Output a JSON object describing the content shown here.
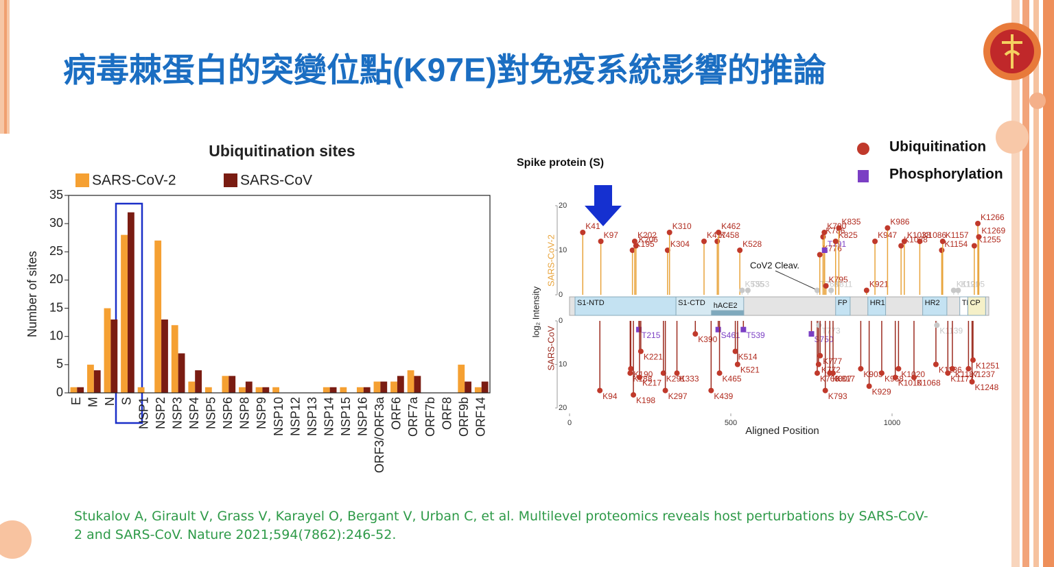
{
  "title": "病毒棘蛋白的突變位點(K97E)對免疫系統影響的推論",
  "chart_data": [
    {
      "type": "bar",
      "title": "Ubiquitination sites",
      "ylabel": "Number of sites",
      "categories": [
        "E",
        "M",
        "N",
        "S",
        "NSP1",
        "NSP2",
        "NSP3",
        "NSP4",
        "NSP5",
        "NSP6",
        "NSP8",
        "NSP9",
        "NSP10",
        "NSP12",
        "NSP13",
        "NSP14",
        "NSP15",
        "NSP16",
        "ORF3/ORF3a",
        "ORF6",
        "ORF7a",
        "ORF7b",
        "ORF8",
        "ORF9b",
        "ORF14"
      ],
      "series": [
        {
          "name": "SARS-CoV-2",
          "color": "#f5a032",
          "values": [
            1,
            5,
            15,
            28,
            1,
            27,
            12,
            2,
            1,
            3,
            1,
            1,
            1,
            0,
            0,
            1,
            1,
            1,
            2,
            2,
            4,
            0,
            0,
            5,
            1
          ]
        },
        {
          "name": "SARS-CoV",
          "color": "#7a1c12",
          "values": [
            1,
            4,
            13,
            32,
            0,
            13,
            7,
            4,
            0,
            3,
            2,
            1,
            0,
            0,
            0,
            1,
            0,
            1,
            2,
            3,
            3,
            0,
            0,
            2,
            2
          ]
        }
      ],
      "ylim": [
        0,
        35
      ],
      "yticks": [
        0,
        5,
        10,
        15,
        20,
        25,
        30,
        35
      ]
    },
    {
      "type": "lollipop",
      "title": "Spike protein (S)",
      "xlabel": "Aligned Position",
      "ylabel": "log₂ Intensity",
      "annotation": "CoV2 Cleav.",
      "xlim": [
        0,
        1300
      ],
      "xticks": [
        0,
        500,
        1000
      ],
      "ylim": [
        0,
        20
      ],
      "yticks": [
        0,
        10,
        20
      ],
      "legend": [
        {
          "name": "Ubiquitination",
          "color": "#c0392b"
        },
        {
          "name": "Phosphorylation",
          "color": "#7b3fc4"
        }
      ],
      "domains": [
        {
          "label": "S1-NTD",
          "start": 17,
          "end": 330,
          "color": "#c4e2f2"
        },
        {
          "label": "S1-CTD",
          "start": 330,
          "end": 540,
          "color": "#d6e9f2"
        },
        {
          "label": "hACE2",
          "start": 440,
          "end": 540,
          "color": "#7fa9bd"
        },
        {
          "label": "FP",
          "start": 825,
          "end": 870,
          "color": "#c4e2f2"
        },
        {
          "label": "HR1",
          "start": 925,
          "end": 980,
          "color": "#c4e2f2"
        },
        {
          "label": "HR2",
          "start": 1095,
          "end": 1170,
          "color": "#c4e2f2"
        },
        {
          "label": "TM",
          "start": 1210,
          "end": 1235,
          "color": "#ffffff"
        },
        {
          "label": "CP",
          "start": 1235,
          "end": 1290,
          "color": "#f5f0c8"
        }
      ],
      "panels": [
        {
          "name": "SARS-CoV-2",
          "color": "#e8a33a",
          "sites": [
            {
              "label": "K41",
              "x": 41,
              "value": 14,
              "color": "#c0392b"
            },
            {
              "label": "K97",
              "x": 97,
              "value": 12,
              "color": "#c0392b"
            },
            {
              "label": "K195",
              "x": 195,
              "value": 10,
              "color": "#c0392b"
            },
            {
              "label": "K202",
              "x": 202,
              "value": 12,
              "color": "#c0392b"
            },
            {
              "label": "K206",
              "x": 206,
              "value": 11,
              "color": "#c0392b"
            },
            {
              "label": "K304",
              "x": 304,
              "value": 10,
              "color": "#c0392b"
            },
            {
              "label": "K310",
              "x": 310,
              "value": 14,
              "color": "#c0392b"
            },
            {
              "label": "K417",
              "x": 417,
              "value": 12,
              "color": "#c0392b"
            },
            {
              "label": "K458",
              "x": 458,
              "value": 12,
              "color": "#c0392b"
            },
            {
              "label": "K462",
              "x": 462,
              "value": 14,
              "color": "#c0392b"
            },
            {
              "label": "K528",
              "x": 528,
              "value": 10,
              "color": "#c0392b"
            },
            {
              "label": "K535",
              "x": 535,
              "value": 1,
              "color": "#c8c8c8"
            },
            {
              "label": "T553",
              "x": 553,
              "value": 1,
              "color": "#c8c8c8"
            },
            {
              "label": "T768",
              "x": 768,
              "value": 1,
              "color": "#c8c8c8"
            },
            {
              "label": "K776",
              "x": 776,
              "value": 9,
              "color": "#c0392b"
            },
            {
              "label": "K786",
              "x": 786,
              "value": 13,
              "color": "#c0392b"
            },
            {
              "label": "K790",
              "x": 790,
              "value": 14,
              "color": "#c0392b"
            },
            {
              "label": "T791",
              "x": 791,
              "value": 10,
              "color": "#7b3fc4"
            },
            {
              "label": "K795",
              "x": 795,
              "value": 2,
              "color": "#c0392b"
            },
            {
              "label": "K811",
              "x": 811,
              "value": 1,
              "color": "#c8c8c8"
            },
            {
              "label": "K825",
              "x": 825,
              "value": 12,
              "color": "#c0392b"
            },
            {
              "label": "K835",
              "x": 835,
              "value": 15,
              "color": "#c0392b"
            },
            {
              "label": "K921",
              "x": 921,
              "value": 1,
              "color": "#c0392b"
            },
            {
              "label": "K947",
              "x": 947,
              "value": 12,
              "color": "#c0392b"
            },
            {
              "label": "K986",
              "x": 986,
              "value": 15,
              "color": "#c0392b"
            },
            {
              "label": "K1028",
              "x": 1028,
              "value": 11,
              "color": "#c0392b"
            },
            {
              "label": "K1038",
              "x": 1038,
              "value": 12,
              "color": "#c0392b"
            },
            {
              "label": "K1086",
              "x": 1086,
              "value": 12,
              "color": "#c0392b"
            },
            {
              "label": "K1154",
              "x": 1154,
              "value": 10,
              "color": "#c0392b"
            },
            {
              "label": "K1157",
              "x": 1157,
              "value": 12,
              "color": "#c0392b"
            },
            {
              "label": "K1191",
              "x": 1191,
              "value": 1,
              "color": "#c8c8c8"
            },
            {
              "label": "K1205",
              "x": 1205,
              "value": 1,
              "color": "#c8c8c8"
            },
            {
              "label": "K1255",
              "x": 1255,
              "value": 11,
              "color": "#c0392b"
            },
            {
              "label": "K1266",
              "x": 1266,
              "value": 16,
              "color": "#c0392b"
            },
            {
              "label": "K1269",
              "x": 1269,
              "value": 13,
              "color": "#c0392b"
            }
          ]
        },
        {
          "name": "SARS-CoV",
          "color": "#9b2a1e",
          "sites": [
            {
              "label": "K94",
              "x": 94,
              "value": 16,
              "color": "#c0392b"
            },
            {
              "label": "K188",
              "x": 188,
              "value": 12,
              "color": "#c0392b"
            },
            {
              "label": "K190",
              "x": 190,
              "value": 11,
              "color": "#c0392b"
            },
            {
              "label": "K198",
              "x": 198,
              "value": 17,
              "color": "#c0392b"
            },
            {
              "label": "T215",
              "x": 215,
              "value": 2,
              "color": "#7b3fc4"
            },
            {
              "label": "K217",
              "x": 217,
              "value": 13,
              "color": "#c0392b"
            },
            {
              "label": "K221",
              "x": 221,
              "value": 7,
              "color": "#c0392b"
            },
            {
              "label": "K291",
              "x": 291,
              "value": 12,
              "color": "#c0392b"
            },
            {
              "label": "K297",
              "x": 297,
              "value": 16,
              "color": "#c0392b"
            },
            {
              "label": "K333",
              "x": 333,
              "value": 12,
              "color": "#c0392b"
            },
            {
              "label": "K390",
              "x": 390,
              "value": 3,
              "color": "#c0392b"
            },
            {
              "label": "K439",
              "x": 439,
              "value": 16,
              "color": "#c0392b"
            },
            {
              "label": "S461",
              "x": 461,
              "value": 2,
              "color": "#7b3fc4"
            },
            {
              "label": "K465",
              "x": 465,
              "value": 12,
              "color": "#c0392b"
            },
            {
              "label": "K514",
              "x": 514,
              "value": 7,
              "color": "#c0392b"
            },
            {
              "label": "K521",
              "x": 521,
              "value": 10,
              "color": "#c0392b"
            },
            {
              "label": "T539",
              "x": 539,
              "value": 2,
              "color": "#7b3fc4"
            },
            {
              "label": "S750",
              "x": 750,
              "value": 3,
              "color": "#7b3fc4"
            },
            {
              "label": "K768",
              "x": 768,
              "value": 12,
              "color": "#c0392b"
            },
            {
              "label": "K772",
              "x": 772,
              "value": 10,
              "color": "#c0392b"
            },
            {
              "label": "T773",
              "x": 773,
              "value": 1,
              "color": "#c8c8c8"
            },
            {
              "label": "K777",
              "x": 777,
              "value": 8,
              "color": "#c0392b"
            },
            {
              "label": "K793",
              "x": 793,
              "value": 16,
              "color": "#c0392b"
            },
            {
              "label": "K807",
              "x": 807,
              "value": 12,
              "color": "#c0392b"
            },
            {
              "label": "K817",
              "x": 817,
              "value": 12,
              "color": "#c0392b"
            },
            {
              "label": "K903",
              "x": 903,
              "value": 11,
              "color": "#c0392b"
            },
            {
              "label": "K929",
              "x": 929,
              "value": 15,
              "color": "#c0392b"
            },
            {
              "label": "K968",
              "x": 968,
              "value": 12,
              "color": "#c0392b"
            },
            {
              "label": "K1010",
              "x": 1010,
              "value": 13,
              "color": "#c0392b"
            },
            {
              "label": "K1020",
              "x": 1020,
              "value": 11,
              "color": "#c0392b"
            },
            {
              "label": "K1068",
              "x": 1068,
              "value": 13,
              "color": "#c0392b"
            },
            {
              "label": "K1136",
              "x": 1136,
              "value": 10,
              "color": "#c0392b"
            },
            {
              "label": "K1139",
              "x": 1139,
              "value": 1,
              "color": "#c8c8c8"
            },
            {
              "label": "K1173",
              "x": 1173,
              "value": 12,
              "color": "#c0392b"
            },
            {
              "label": "K1187",
              "x": 1187,
              "value": 11,
              "color": "#c0392b"
            },
            {
              "label": "K1237",
              "x": 1237,
              "value": 11,
              "color": "#c0392b"
            },
            {
              "label": "K1248",
              "x": 1248,
              "value": 14,
              "color": "#c0392b"
            },
            {
              "label": "K1251",
              "x": 1251,
              "value": 9,
              "color": "#c0392b"
            }
          ]
        }
      ]
    }
  ],
  "citation": "Stukalov A, Girault V, Grass V, Karayel O, Bergant V, Urban C, et al. Multilevel proteomics reveals host perturbations by SARS-CoV-2 and SARS-CoV. Nature 2021;594(7862):246-52."
}
